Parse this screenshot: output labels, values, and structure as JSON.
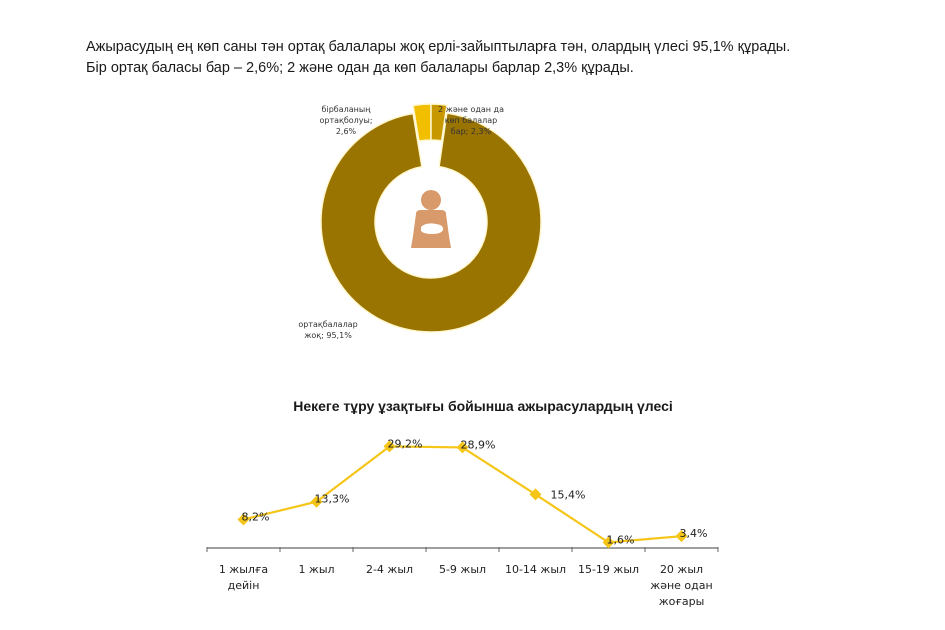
{
  "intro": {
    "line1": "Ажырасудың ең көп саны тән ортақ балалары  жоқ ерлі-зайыптыларға тән, олардың үлесі 95,1%  құрады.",
    "line2": "Бір ортақ баласы бар – 2,6%;  2 және одан да көп балалары барлар 2,3% құрады."
  },
  "colors": {
    "no_children": "#9A7400",
    "one_child": "#F2BE00",
    "two_plus": "#C89800",
    "line": "#F5C518",
    "marker": "#F5C518",
    "icon": "#D89A6A"
  },
  "center_icon": "mother-holding-baby-icon",
  "chart_data": [
    {
      "type": "pie",
      "variant": "donut",
      "title": "",
      "categories": [
        "ортақ балалар жоқ",
        "бір баланың ортақ болуы",
        "2 және одан да көп балалар бар"
      ],
      "values": [
        95.1,
        2.6,
        2.3
      ],
      "labels": [
        [
          "ортақбалалар",
          "жоқ; 95,1%"
        ],
        [
          "бірбаланың",
          "ортақболуы;",
          "2,6%"
        ],
        [
          "2 және одан да",
          "көп балалар",
          "бар; 2,3%"
        ]
      ]
    },
    {
      "type": "line",
      "title": "Некеге тұру ұзақтығы бойынша ажырасулардың үлесі",
      "xlabel": "",
      "ylabel": "",
      "categories": [
        [
          "1 жылға",
          "дейін"
        ],
        [
          "1 жыл"
        ],
        [
          "2-4 жыл"
        ],
        [
          "5-9 жыл"
        ],
        [
          "10-14 жыл"
        ],
        [
          "15-19 жыл"
        ],
        [
          "20 жыл",
          "және одан",
          "жоғары"
        ]
      ],
      "values": [
        8.2,
        13.3,
        29.2,
        28.9,
        15.4,
        1.6,
        3.4
      ],
      "data_labels": [
        "8,2%",
        "13,3%",
        "29,2%",
        "28,9%",
        "15,4%",
        "1,6%",
        "3,4%"
      ],
      "grid": false,
      "legend": "none",
      "marker": "diamond"
    }
  ]
}
